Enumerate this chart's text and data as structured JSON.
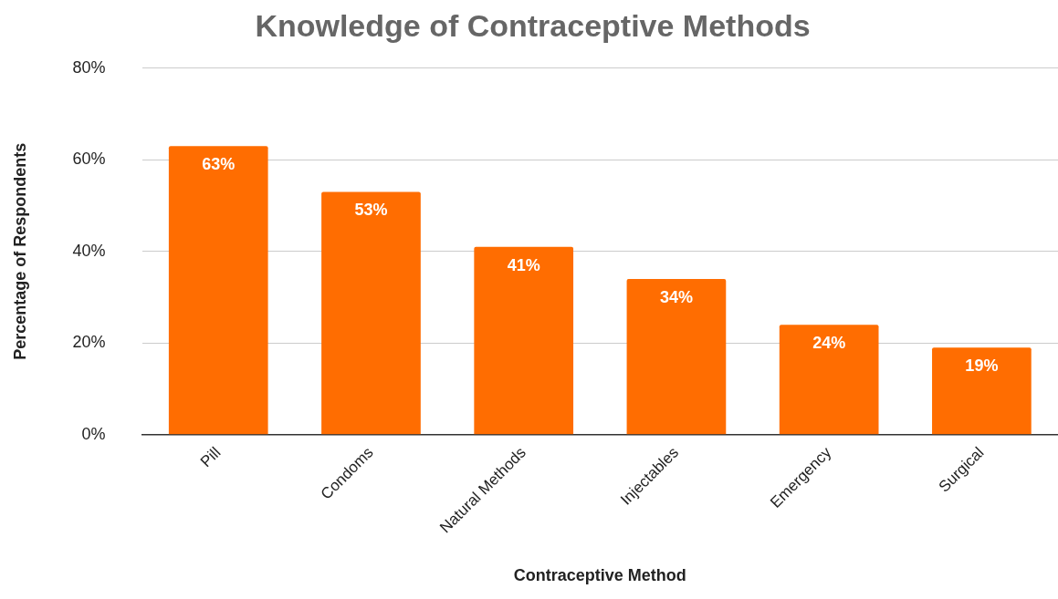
{
  "chart_data": {
    "type": "bar",
    "title": "Knowledge of Contraceptive Methods",
    "xlabel": "Contraceptive Method",
    "ylabel": "Percentage of Respondents",
    "categories": [
      "Pill",
      "Condoms",
      "Natural Methods",
      "Injectables",
      "Emergency",
      "Surgical"
    ],
    "values": [
      63,
      53,
      41,
      34,
      24,
      19
    ],
    "value_labels": [
      "63%",
      "53%",
      "41%",
      "34%",
      "24%",
      "19%"
    ],
    "color": "#ff6d01",
    "ylim": [
      0,
      80
    ],
    "yticks": [
      {
        "value": 0,
        "label": "0%"
      },
      {
        "value": 20,
        "label": "20%"
      },
      {
        "value": 40,
        "label": "40%"
      },
      {
        "value": 60,
        "label": "60%"
      },
      {
        "value": 80,
        "label": "80%"
      }
    ],
    "grid": "y",
    "legend": false
  }
}
